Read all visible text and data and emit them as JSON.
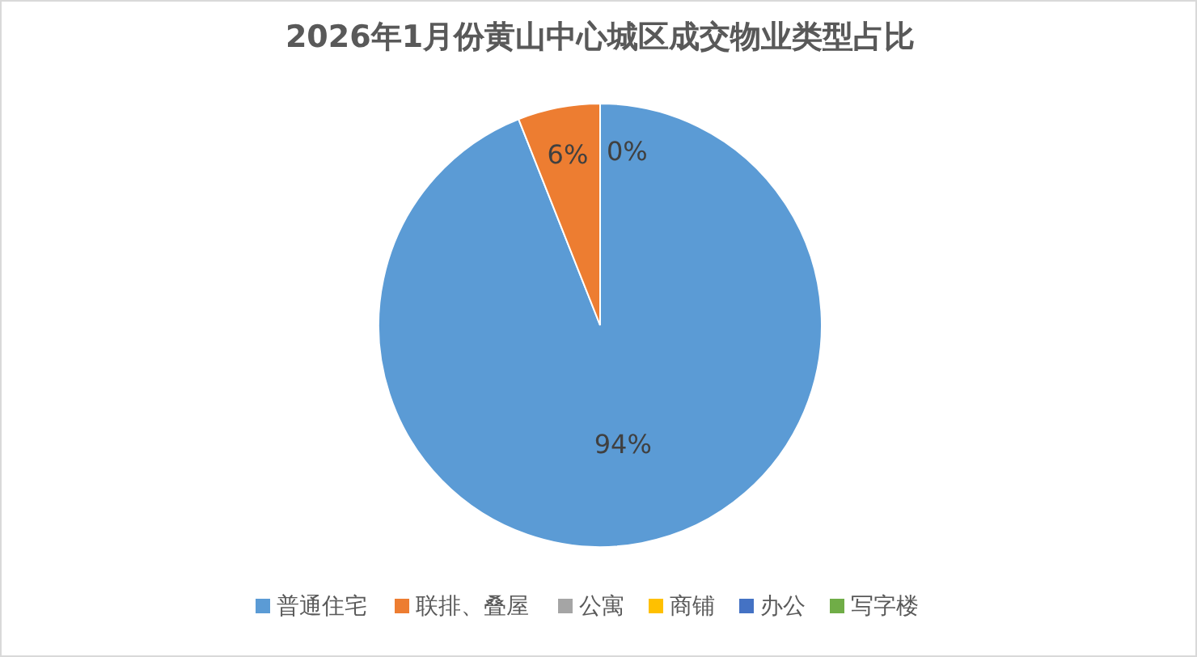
{
  "chart_data": {
    "type": "pie",
    "title": "2026年1月份黄山中心城区成交物业类型占比",
    "categories": [
      "普通住宅",
      "联排、叠屋",
      "公寓",
      "商铺",
      "办公",
      "写字楼"
    ],
    "values": [
      94,
      6,
      0,
      0,
      0,
      0
    ],
    "value_labels": [
      "94%",
      "6%",
      "0%",
      null,
      null,
      null
    ],
    "colors": [
      "#5b9bd5",
      "#ed7d31",
      "#a5a5a5",
      "#ffc000",
      "#4472c4",
      "#70ad47"
    ],
    "legend": "bottom"
  }
}
